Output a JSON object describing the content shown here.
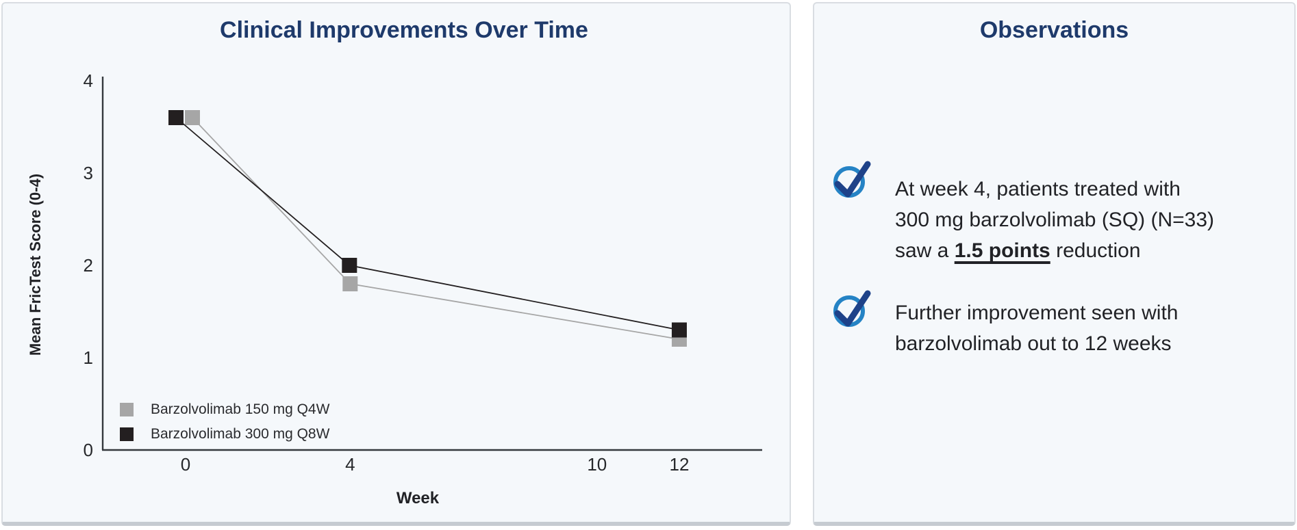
{
  "page": {
    "background": "#ffffff",
    "panel_bg": "#f5f8fb",
    "panel_border": "#d9dde2",
    "title_color": "#1e3a6b",
    "text_color": "#212226"
  },
  "chart_panel": {
    "title": "Clinical Improvements Over Time"
  },
  "chart_data": {
    "type": "line",
    "title": "Clinical Improvements Over Time",
    "xlabel": "Week",
    "ylabel": "Mean FricTest Score (0-4)",
    "x": [
      0,
      4,
      12
    ],
    "x_ticks": [
      "0",
      "4",
      "10",
      "12"
    ],
    "x_tick_values": [
      0,
      4,
      10,
      12
    ],
    "y_ticks": [
      "0",
      "1",
      "2",
      "3",
      "4"
    ],
    "y_tick_values": [
      0,
      1,
      2,
      3,
      4
    ],
    "ylim": [
      0,
      4
    ],
    "xlim": [
      -2,
      14
    ],
    "grid": false,
    "legend_position": "lower-left",
    "marker": "square",
    "series": [
      {
        "name": "Barzolvolimab 150 mg Q4W",
        "color": "#a6a6a6",
        "values": [
          3.6,
          1.8,
          1.2
        ]
      },
      {
        "name": "Barzolvolimab 300 mg Q8W",
        "color": "#231f20",
        "values": [
          3.6,
          2.0,
          1.3
        ]
      }
    ]
  },
  "observations": {
    "title": "Observations",
    "check_icon": {
      "circle_color": "#2583c5",
      "check_color": "#1e4289"
    },
    "bullets": [
      {
        "line1": "At week 4, patients treated with",
        "line2": "300 mg barzolvolimab (SQ) (N=33)",
        "line3_prefix": "saw a ",
        "line3_emphasis": "1.5 points",
        "line3_suffix": " reduction"
      },
      {
        "line1": "Further improvement seen with",
        "line2": "barzolvolimab out to 12 weeks"
      }
    ]
  }
}
